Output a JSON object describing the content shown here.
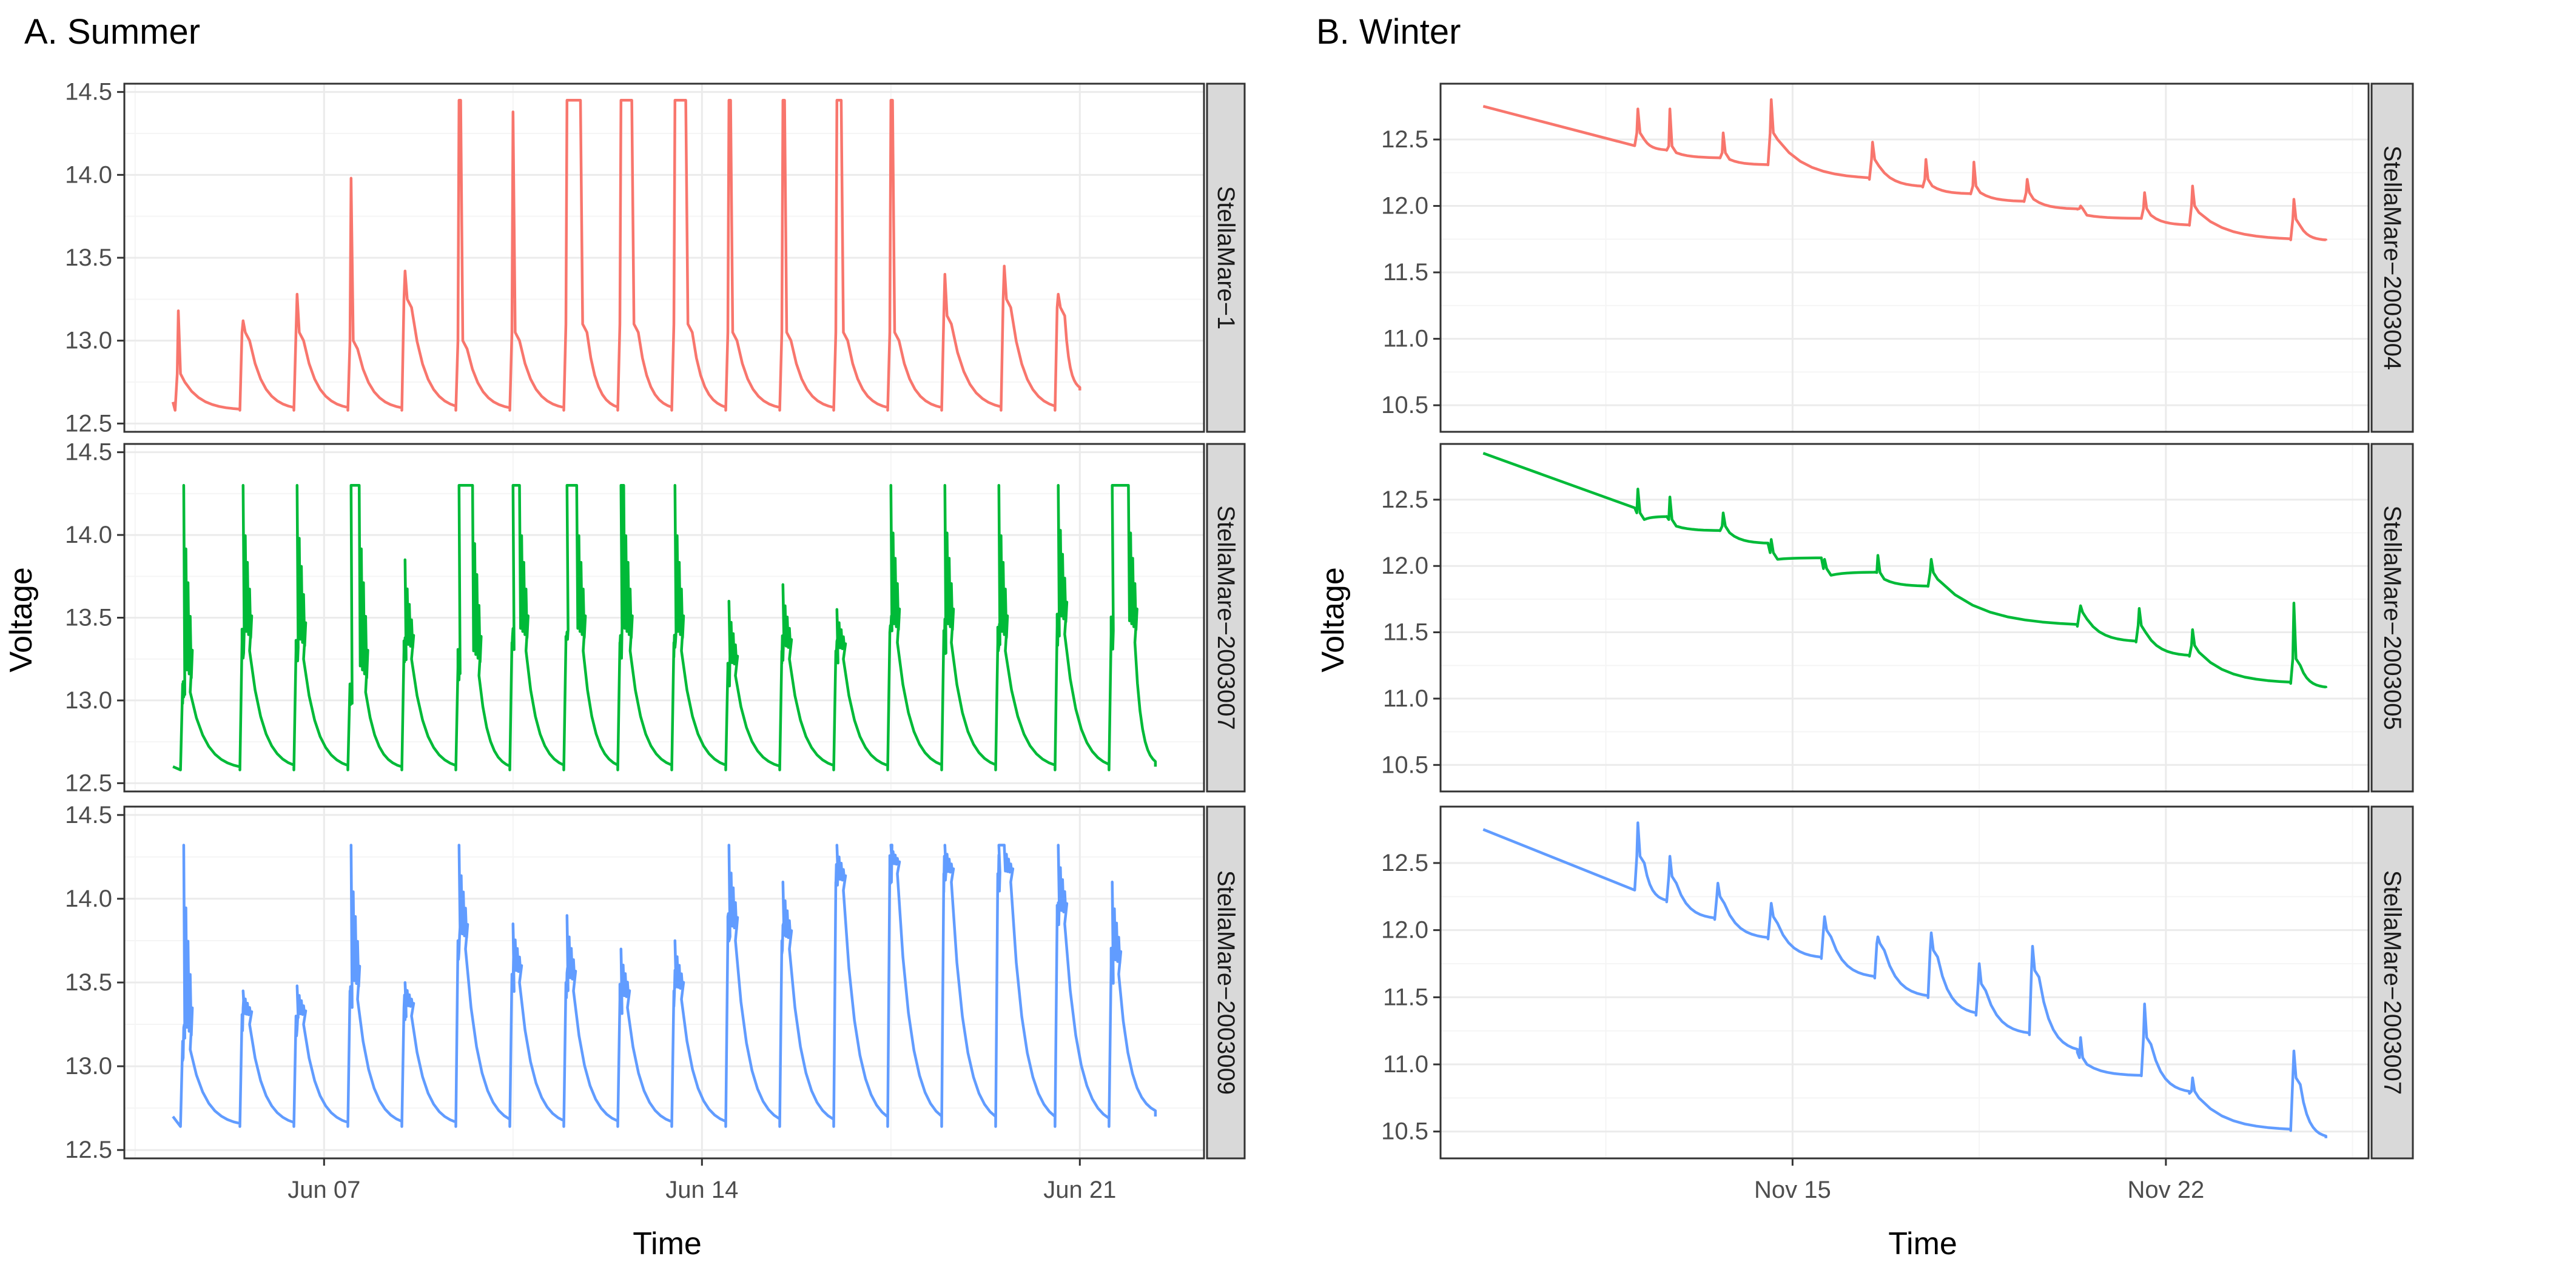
{
  "colors": {
    "series_1": "#F8766D",
    "series_2": "#00BA38",
    "series_3": "#619CFF",
    "strip_fill": "#D9D9D9",
    "grid_major": "#EBEBEB",
    "grid_minor": "#F5F5F5",
    "panel_border": "#333333"
  },
  "chart_data": [
    {
      "type": "line",
      "title": "A. Summer",
      "xlabel": "Time",
      "ylabel": "Voltage",
      "x_unit": "day of June",
      "xlim": [
        3.3,
        23.3
      ],
      "ylim": [
        12.45,
        14.55
      ],
      "x_ticks": [
        {
          "value": 7,
          "label": "Jun 07"
        },
        {
          "value": 14,
          "label": "Jun 14"
        },
        {
          "value": 21,
          "label": "Jun 21"
        }
      ],
      "y_ticks": [
        {
          "value": 12.5,
          "label": "12.5"
        },
        {
          "value": 13.0,
          "label": "13.0"
        },
        {
          "value": 13.5,
          "label": "13.5"
        },
        {
          "value": 14.0,
          "label": "14.0"
        },
        {
          "value": 14.5,
          "label": "14.5"
        }
      ],
      "series": [
        {
          "name": "StellaMare−1",
          "color": "#F8766D",
          "x_start": 4.2,
          "x_end": 21.0,
          "baseline_start": 12.7,
          "baseline_end": 12.6,
          "pre_peak_base": 12.58,
          "start_value": 12.63,
          "end_value": 12.7,
          "noise": false,
          "peaks": [
            {
              "day": 4.3,
              "peak": 13.18,
              "shoulder": 12.8
            },
            {
              "day": 5.5,
              "peak": 13.12,
              "shoulder": 13.05
            },
            {
              "day": 6.5,
              "peak": 13.28,
              "shoulder": 13.05
            },
            {
              "day": 7.5,
              "peak": 13.98,
              "shoulder": 13.0
            },
            {
              "day": 8.5,
              "peak": 13.42,
              "shoulder": 13.25
            },
            {
              "day": 9.5,
              "peak": 14.45,
              "shoulder": 13.0,
              "plateau": 0.03
            },
            {
              "day": 10.5,
              "peak": 14.38,
              "shoulder": 13.05
            },
            {
              "day": 11.5,
              "peak": 14.45,
              "shoulder": 13.1,
              "plateau": 0.25
            },
            {
              "day": 12.5,
              "peak": 14.45,
              "shoulder": 13.1,
              "plateau": 0.2
            },
            {
              "day": 13.5,
              "peak": 14.45,
              "shoulder": 13.1,
              "plateau": 0.2
            },
            {
              "day": 14.5,
              "peak": 14.45,
              "shoulder": 13.05,
              "plateau": 0.03
            },
            {
              "day": 15.5,
              "peak": 14.45,
              "shoulder": 13.05,
              "plateau": 0.03
            },
            {
              "day": 16.5,
              "peak": 14.45,
              "shoulder": 13.05,
              "plateau": 0.08
            },
            {
              "day": 17.5,
              "peak": 14.45,
              "shoulder": 13.05,
              "plateau": 0.03
            },
            {
              "day": 18.5,
              "peak": 13.4,
              "shoulder": 13.15
            },
            {
              "day": 19.6,
              "peak": 13.45,
              "shoulder": 13.25
            },
            {
              "day": 20.6,
              "peak": 13.28,
              "shoulder": 13.2
            }
          ]
        },
        {
          "name": "StellaMare−2003007",
          "color": "#00BA38",
          "x_start": 4.2,
          "x_end": 22.4,
          "baseline_start": 12.62,
          "baseline_end": 12.6,
          "pre_peak_base": 12.58,
          "start_value": 12.6,
          "end_value": 12.6,
          "noise": true,
          "peaks": [
            {
              "day": 4.4,
              "peak": 14.3,
              "shoulder": 13.1
            },
            {
              "day": 5.5,
              "peak": 14.3,
              "shoulder": 13.35
            },
            {
              "day": 6.5,
              "peak": 14.3,
              "shoulder": 13.3
            },
            {
              "day": 7.5,
              "peak": 14.3,
              "shoulder": 13.1,
              "plateau": 0.15
            },
            {
              "day": 8.5,
              "peak": 13.85,
              "shoulder": 13.3
            },
            {
              "day": 9.5,
              "peak": 14.3,
              "shoulder": 13.2,
              "plateau": 0.25
            },
            {
              "day": 10.5,
              "peak": 14.3,
              "shoulder": 13.35,
              "plateau": 0.12
            },
            {
              "day": 11.5,
              "peak": 14.3,
              "shoulder": 13.35,
              "plateau": 0.18
            },
            {
              "day": 12.5,
              "peak": 14.3,
              "shoulder": 13.35,
              "plateau": 0.05
            },
            {
              "day": 13.5,
              "peak": 14.3,
              "shoulder": 13.35
            },
            {
              "day": 14.5,
              "peak": 13.6,
              "shoulder": 13.2
            },
            {
              "day": 15.5,
              "peak": 13.7,
              "shoulder": 13.3
            },
            {
              "day": 16.5,
              "peak": 13.55,
              "shoulder": 13.3
            },
            {
              "day": 17.5,
              "peak": 14.3,
              "shoulder": 13.4
            },
            {
              "day": 18.5,
              "peak": 14.3,
              "shoulder": 13.4
            },
            {
              "day": 19.5,
              "peak": 14.3,
              "shoulder": 13.35
            },
            {
              "day": 20.6,
              "peak": 14.3,
              "shoulder": 13.45
            },
            {
              "day": 21.6,
              "peak": 14.3,
              "shoulder": 13.4,
              "plateau": 0.3
            }
          ]
        },
        {
          "name": "StellaMare−2003009",
          "color": "#619CFF",
          "x_start": 4.2,
          "x_end": 22.4,
          "baseline_start": 12.67,
          "baseline_end": 12.67,
          "pre_peak_base": 12.64,
          "start_value": 12.7,
          "end_value": 12.7,
          "noise": true,
          "peaks": [
            {
              "day": 4.4,
              "peak": 14.32,
              "shoulder": 13.15
            },
            {
              "day": 5.5,
              "peak": 13.45,
              "shoulder": 13.3
            },
            {
              "day": 6.5,
              "peak": 13.48,
              "shoulder": 13.3
            },
            {
              "day": 7.5,
              "peak": 14.32,
              "shoulder": 13.45
            },
            {
              "day": 8.5,
              "peak": 13.5,
              "shoulder": 13.35
            },
            {
              "day": 9.5,
              "peak": 14.32,
              "shoulder": 13.75
            },
            {
              "day": 10.5,
              "peak": 13.85,
              "shoulder": 13.55
            },
            {
              "day": 11.5,
              "peak": 13.9,
              "shoulder": 13.5
            },
            {
              "day": 12.5,
              "peak": 13.7,
              "shoulder": 13.4
            },
            {
              "day": 13.5,
              "peak": 13.75,
              "shoulder": 13.45
            },
            {
              "day": 14.5,
              "peak": 14.32,
              "shoulder": 13.8
            },
            {
              "day": 15.5,
              "peak": 14.1,
              "shoulder": 13.75
            },
            {
              "day": 16.5,
              "peak": 14.32,
              "shoulder": 14.1
            },
            {
              "day": 17.5,
              "peak": 14.32,
              "shoulder": 14.2
            },
            {
              "day": 18.5,
              "peak": 14.32,
              "shoulder": 14.15
            },
            {
              "day": 19.5,
              "peak": 14.32,
              "shoulder": 14.15,
              "plateau": 0.1
            },
            {
              "day": 20.6,
              "peak": 14.32,
              "shoulder": 13.9
            },
            {
              "day": 21.6,
              "peak": 14.1,
              "shoulder": 13.6
            }
          ]
        }
      ]
    },
    {
      "type": "line",
      "title": "B. Winter",
      "xlabel": "Time",
      "ylabel": "Voltage",
      "x_unit": "day of November",
      "xlim": [
        8.4,
        25.8
      ],
      "ylim": [
        10.3,
        12.92
      ],
      "x_ticks": [
        {
          "value": 15,
          "label": "Nov 15"
        },
        {
          "value": 22,
          "label": "Nov 22"
        }
      ],
      "y_ticks": [
        {
          "value": 10.5,
          "label": "10.5"
        },
        {
          "value": 11.0,
          "label": "11.0"
        },
        {
          "value": 11.5,
          "label": "11.5"
        },
        {
          "value": 12.0,
          "label": "12.0"
        },
        {
          "value": 12.5,
          "label": "12.5"
        }
      ],
      "series": [
        {
          "name": "StellaMare−2003004",
          "color": "#F8766D",
          "x_start": 9.2,
          "x_end": 25.0,
          "baseline_start": 12.65,
          "baseline_end": 11.74,
          "start_value": 12.75,
          "end_value": 11.74,
          "noise": false,
          "peaks": [
            {
              "day": 12.1,
              "peak": 12.73,
              "shoulder": 12.55
            },
            {
              "day": 12.7,
              "peak": 12.73,
              "shoulder": 12.45
            },
            {
              "day": 13.7,
              "peak": 12.55,
              "shoulder": 12.4
            },
            {
              "day": 14.6,
              "peak": 12.8,
              "shoulder": 12.55
            },
            {
              "day": 16.5,
              "peak": 12.48,
              "shoulder": 12.35
            },
            {
              "day": 17.5,
              "peak": 12.35,
              "shoulder": 12.2
            },
            {
              "day": 18.4,
              "peak": 12.33,
              "shoulder": 12.15
            },
            {
              "day": 19.4,
              "peak": 12.2,
              "shoulder": 12.1
            },
            {
              "day": 20.4,
              "peak": 12.0,
              "shoulder": 11.98
            },
            {
              "day": 21.6,
              "peak": 12.1,
              "shoulder": 11.98
            },
            {
              "day": 22.5,
              "peak": 12.15,
              "shoulder": 12.0
            },
            {
              "day": 24.4,
              "peak": 12.05,
              "shoulder": 11.9
            }
          ]
        },
        {
          "name": "StellaMare−2003005",
          "color": "#00BA38",
          "x_start": 9.2,
          "x_end": 25.0,
          "baseline_start": 12.78,
          "baseline_end": 11.08,
          "start_value": 12.85,
          "end_value": 11.08,
          "noise": false,
          "peaks": [
            {
              "day": 12.1,
              "peak": 12.58,
              "shoulder": 12.4
            },
            {
              "day": 12.7,
              "peak": 12.52,
              "shoulder": 12.35
            },
            {
              "day": 13.7,
              "peak": 12.4,
              "shoulder": 12.3
            },
            {
              "day": 14.6,
              "peak": 12.2,
              "shoulder": 12.1
            },
            {
              "day": 15.6,
              "peak": 12.05,
              "shoulder": 11.98
            },
            {
              "day": 16.6,
              "peak": 12.08,
              "shoulder": 11.95
            },
            {
              "day": 17.6,
              "peak": 12.05,
              "shoulder": 11.95
            },
            {
              "day": 20.4,
              "peak": 11.7,
              "shoulder": 11.65
            },
            {
              "day": 21.5,
              "peak": 11.68,
              "shoulder": 11.55
            },
            {
              "day": 22.5,
              "peak": 11.52,
              "shoulder": 11.4
            },
            {
              "day": 24.4,
              "peak": 11.72,
              "shoulder": 11.3
            }
          ]
        },
        {
          "name": "StellaMare−2003007",
          "color": "#619CFF",
          "x_start": 9.2,
          "x_end": 25.0,
          "baseline_start": 12.75,
          "baseline_end": 10.45,
          "start_value": 12.75,
          "end_value": 10.45,
          "noise": false,
          "peaks": [
            {
              "day": 12.1,
              "peak": 12.8,
              "shoulder": 12.55
            },
            {
              "day": 12.7,
              "peak": 12.55,
              "shoulder": 12.4
            },
            {
              "day": 13.6,
              "peak": 12.35,
              "shoulder": 12.25
            },
            {
              "day": 14.6,
              "peak": 12.2,
              "shoulder": 12.1
            },
            {
              "day": 15.6,
              "peak": 12.1,
              "shoulder": 12.0
            },
            {
              "day": 16.6,
              "peak": 11.95,
              "shoulder": 11.9
            },
            {
              "day": 17.6,
              "peak": 11.98,
              "shoulder": 11.85
            },
            {
              "day": 18.5,
              "peak": 11.75,
              "shoulder": 11.6
            },
            {
              "day": 19.5,
              "peak": 11.88,
              "shoulder": 11.7
            },
            {
              "day": 20.4,
              "peak": 11.2,
              "shoulder": 11.05
            },
            {
              "day": 21.6,
              "peak": 11.45,
              "shoulder": 11.2
            },
            {
              "day": 22.5,
              "peak": 10.9,
              "shoulder": 10.8
            },
            {
              "day": 24.4,
              "peak": 11.1,
              "shoulder": 10.9
            }
          ]
        }
      ]
    }
  ]
}
